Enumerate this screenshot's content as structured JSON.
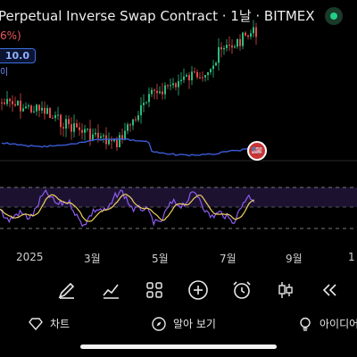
{
  "header": {
    "title": "Perpetual Inverse Swap Contract · 1날 · BITMEX",
    "change_pct": "6%)",
    "indicator_value": "10.0",
    "indicator_sub": "이"
  },
  "x_axis": {
    "labels": [
      "2025",
      "3월",
      "5월",
      "7월",
      "9월",
      "1"
    ]
  },
  "toolbar": {
    "icons": [
      "pen-icon",
      "chart-line-icon",
      "grid-icon",
      "plus-circle-icon",
      "alarm-icon",
      "candles-icon",
      "rewind-icon"
    ]
  },
  "bottom_nav": {
    "items": [
      {
        "label": "차트",
        "icon": "diamond-icon"
      },
      {
        "label": "알아 보기",
        "icon": "compass-icon"
      },
      {
        "label": "아이디어",
        "icon": "bulb-icon"
      }
    ]
  },
  "colors": {
    "up": "#2bbd7e",
    "down": "#e24a4a",
    "ma": "#3b5bd6",
    "rsi": "#8e5cf0",
    "rsi_signal": "#f0d060",
    "background": "#000000"
  }
}
